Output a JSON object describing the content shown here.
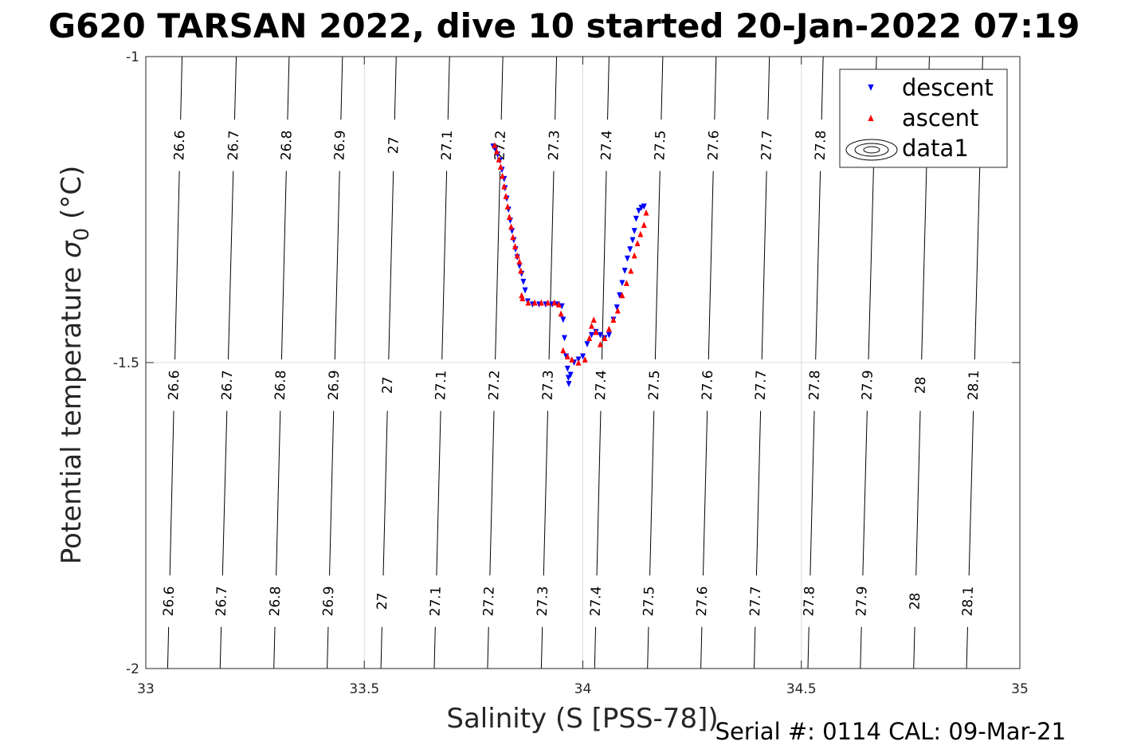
{
  "chart_data": {
    "type": "scatter",
    "title": "G620 TARSAN 2022, dive 10 started 20-Jan-2022 07:19",
    "xlabel": "Salinity (S [PSS-78])",
    "ylabel_prefix": "Potential temperature ",
    "ylabel_sigma": "σ",
    "ylabel_sub": "0",
    "ylabel_suffix": " (°C)",
    "footer": "Serial #: 0114  CAL: 09-Mar-21",
    "xlim": [
      33,
      35
    ],
    "ylim": [
      -2,
      -1
    ],
    "xticks": [
      33,
      33.5,
      34,
      34.5,
      35
    ],
    "xtick_labels": [
      "33",
      "33.5",
      "34",
      "34.5",
      "35"
    ],
    "yticks": [
      -2,
      -1.5,
      -1
    ],
    "ytick_labels": [
      "-2",
      "-1.5",
      "-1"
    ],
    "grid": true,
    "legend": {
      "placement": "top-right",
      "entries": [
        {
          "label": "descent",
          "color": "#0000ff",
          "marker": "triangle-down"
        },
        {
          "label": "ascent",
          "color": "#ff0000",
          "marker": "triangle-up"
        },
        {
          "label": "data1",
          "color": "#000000",
          "marker": "contour"
        }
      ]
    },
    "contours": {
      "levels": [
        "26.6",
        "26.7",
        "26.8",
        "26.9",
        "27",
        "27.1",
        "27.2",
        "27.3",
        "27.4",
        "27.5",
        "27.6",
        "27.7",
        "27.8",
        "27.9",
        "28",
        "28.1"
      ],
      "x_at_top": [
        33.083,
        33.207,
        33.328,
        33.45,
        33.573,
        33.695,
        33.817,
        33.94,
        34.06,
        34.183,
        34.305,
        34.427,
        34.55,
        34.672,
        34.793,
        34.915
      ],
      "x_at_bottom": [
        33.05,
        33.17,
        33.293,
        33.415,
        33.538,
        33.66,
        33.782,
        33.905,
        34.027,
        34.148,
        34.27,
        34.392,
        34.515,
        34.635,
        34.757,
        34.878
      ],
      "labels_upper": [
        "26.6",
        "26.7",
        "26.8",
        "26.9",
        "27",
        "27.1",
        "27.2",
        "27.3",
        "27.4",
        "27.5",
        "27.6",
        "27.7",
        "27.8"
      ],
      "labels_mid": [
        "26.6",
        "26.7",
        "26.8",
        "26.9",
        "27",
        "27.1",
        "27.2",
        "27.3",
        "27.4",
        "27.5",
        "27.6",
        "27.7",
        "27.8",
        "27.9",
        "28",
        "28.1"
      ],
      "labels_lower": [
        "26.6",
        "26.7",
        "26.8",
        "26.9",
        "27",
        "27.1",
        "27.2",
        "27.3",
        "27.4",
        "27.5",
        "27.6",
        "27.7",
        "27.8",
        "27.9",
        "28",
        "28.1"
      ]
    },
    "series": [
      {
        "name": "descent",
        "color": "#0000ff",
        "marker": "triangle-down",
        "points": [
          [
            33.795,
            -1.147
          ],
          [
            33.8,
            -1.152
          ],
          [
            33.805,
            -1.16
          ],
          [
            33.81,
            -1.17
          ],
          [
            33.815,
            -1.185
          ],
          [
            33.82,
            -1.2
          ],
          [
            33.822,
            -1.215
          ],
          [
            33.826,
            -1.232
          ],
          [
            33.83,
            -1.25
          ],
          [
            33.834,
            -1.268
          ],
          [
            33.838,
            -1.285
          ],
          [
            33.842,
            -1.3
          ],
          [
            33.846,
            -1.315
          ],
          [
            33.85,
            -1.328
          ],
          [
            33.855,
            -1.342
          ],
          [
            33.86,
            -1.355
          ],
          [
            33.864,
            -1.368
          ],
          [
            33.868,
            -1.382
          ],
          [
            33.874,
            -1.4
          ],
          [
            33.885,
            -1.405
          ],
          [
            33.9,
            -1.405
          ],
          [
            33.915,
            -1.405
          ],
          [
            33.93,
            -1.405
          ],
          [
            33.942,
            -1.405
          ],
          [
            33.952,
            -1.408
          ],
          [
            33.955,
            -1.43
          ],
          [
            33.958,
            -1.46
          ],
          [
            33.962,
            -1.49
          ],
          [
            33.965,
            -1.51
          ],
          [
            33.967,
            -1.525
          ],
          [
            33.968,
            -1.535
          ],
          [
            33.972,
            -1.52
          ],
          [
            33.98,
            -1.5
          ],
          [
            33.99,
            -1.495
          ],
          [
            34.0,
            -1.49
          ],
          [
            34.01,
            -1.47
          ],
          [
            34.02,
            -1.455
          ],
          [
            34.03,
            -1.45
          ],
          [
            34.04,
            -1.455
          ],
          [
            34.05,
            -1.46
          ],
          [
            34.06,
            -1.455
          ],
          [
            34.07,
            -1.43
          ],
          [
            34.078,
            -1.41
          ],
          [
            34.084,
            -1.39
          ],
          [
            34.09,
            -1.37
          ],
          [
            34.096,
            -1.35
          ],
          [
            34.102,
            -1.33
          ],
          [
            34.108,
            -1.315
          ],
          [
            34.114,
            -1.3
          ],
          [
            34.118,
            -1.285
          ],
          [
            34.122,
            -1.265
          ],
          [
            34.128,
            -1.252
          ],
          [
            34.134,
            -1.247
          ],
          [
            34.14,
            -1.245
          ]
        ]
      },
      {
        "name": "ascent",
        "color": "#ff0000",
        "marker": "triangle-up",
        "points": [
          [
            33.798,
            -1.145
          ],
          [
            33.803,
            -1.155
          ],
          [
            33.808,
            -1.168
          ],
          [
            33.812,
            -1.18
          ],
          [
            33.816,
            -1.195
          ],
          [
            33.82,
            -1.212
          ],
          [
            33.824,
            -1.228
          ],
          [
            33.828,
            -1.245
          ],
          [
            33.832,
            -1.262
          ],
          [
            33.836,
            -1.278
          ],
          [
            33.84,
            -1.295
          ],
          [
            33.845,
            -1.31
          ],
          [
            33.85,
            -1.325
          ],
          [
            33.855,
            -1.335
          ],
          [
            33.858,
            -1.35
          ],
          [
            33.86,
            -1.39
          ],
          [
            33.862,
            -1.395
          ],
          [
            33.875,
            -1.402
          ],
          [
            33.89,
            -1.402
          ],
          [
            33.905,
            -1.402
          ],
          [
            33.92,
            -1.402
          ],
          [
            33.935,
            -1.402
          ],
          [
            33.945,
            -1.405
          ],
          [
            33.95,
            -1.42
          ],
          [
            33.955,
            -1.48
          ],
          [
            33.965,
            -1.49
          ],
          [
            33.975,
            -1.495
          ],
          [
            33.99,
            -1.5
          ],
          [
            34.005,
            -1.495
          ],
          [
            34.015,
            -1.46
          ],
          [
            34.02,
            -1.44
          ],
          [
            34.025,
            -1.43
          ],
          [
            34.03,
            -1.45
          ],
          [
            34.04,
            -1.47
          ],
          [
            34.05,
            -1.46
          ],
          [
            34.06,
            -1.445
          ],
          [
            34.07,
            -1.43
          ],
          [
            34.08,
            -1.415
          ],
          [
            34.09,
            -1.39
          ],
          [
            34.1,
            -1.37
          ],
          [
            34.11,
            -1.35
          ],
          [
            34.118,
            -1.325
          ],
          [
            34.125,
            -1.305
          ],
          [
            34.132,
            -1.29
          ],
          [
            34.14,
            -1.275
          ],
          [
            34.145,
            -1.255
          ]
        ]
      }
    ]
  }
}
